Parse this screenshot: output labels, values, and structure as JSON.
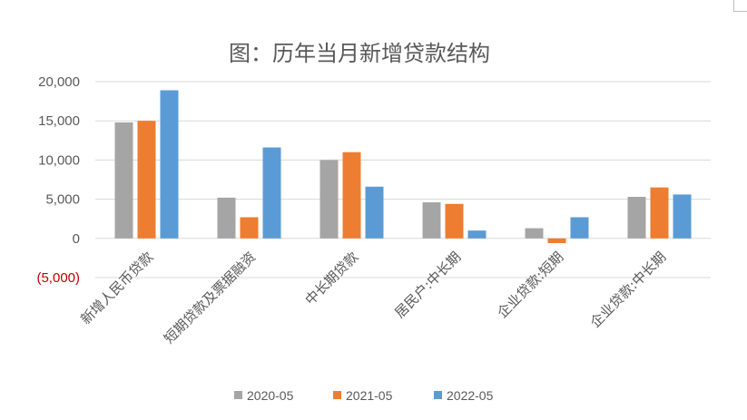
{
  "chart_data": {
    "type": "bar",
    "title": "图：历年当月新增贷款结构",
    "categories": [
      "新增人民币贷款",
      "短期贷款及票据融资",
      "中长期贷款",
      "居民户:中长期",
      "企业贷款:短期",
      "企业贷款:中长期"
    ],
    "series": [
      {
        "name": "2020-05",
        "color": "#a5a5a5",
        "values": [
          14800,
          5200,
          10000,
          4600,
          1300,
          5300
        ]
      },
      {
        "name": "2021-05",
        "color": "#ed7d31",
        "values": [
          15000,
          2700,
          11000,
          4400,
          -600,
          6500
        ]
      },
      {
        "name": "2022-05",
        "color": "#5b9bd5",
        "values": [
          18900,
          11600,
          6600,
          1000,
          2700,
          5600
        ]
      }
    ],
    "yticks": [
      20000,
      15000,
      10000,
      5000,
      0,
      -5000
    ],
    "ytick_labels": [
      "20,000",
      "15,000",
      "10,000",
      "5,000",
      "0",
      "(5,000)"
    ],
    "ylim": [
      -5000,
      20000
    ],
    "negative_label_color": "#c00000",
    "grid": true,
    "legend_position": "bottom",
    "xlabel": "",
    "ylabel": ""
  }
}
